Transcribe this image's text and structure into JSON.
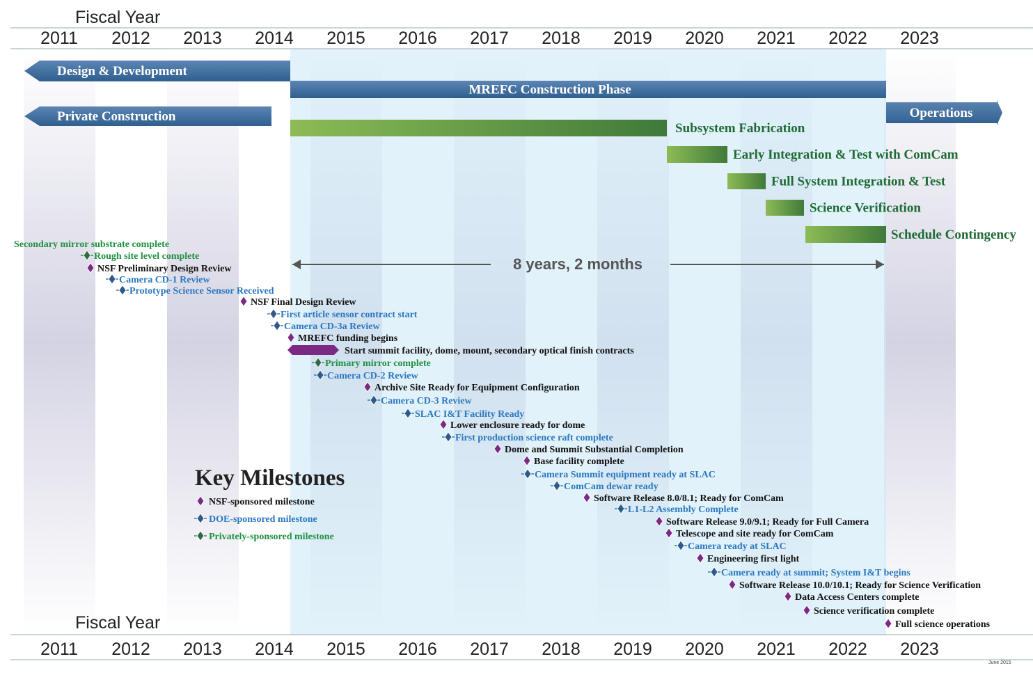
{
  "fiscal_year_label": "Fiscal Year",
  "years": [
    "2011",
    "2012",
    "2013",
    "2014",
    "2015",
    "2016",
    "2017",
    "2018",
    "2019",
    "2020",
    "2021",
    "2022",
    "2023"
  ],
  "phases": [
    {
      "label": "Design & Development"
    },
    {
      "label": "MREFC Construction Phase"
    },
    {
      "label": "Private Construction"
    },
    {
      "label": "Operations"
    },
    {
      "label": "Subsystem Fabrication"
    },
    {
      "label": "Early Integration & Test with ComCam"
    },
    {
      "label": "Full System Integration & Test"
    },
    {
      "label": "Science Verification"
    },
    {
      "label": "Schedule Contingency"
    }
  ],
  "duration_label": "8 years, 2 months",
  "milestones": [
    {
      "label": "Secondary mirror substrate complete"
    },
    {
      "label": "Rough site level complete"
    },
    {
      "label": "NSF Preliminary Design Review"
    },
    {
      "label": "Camera CD-1 Review"
    },
    {
      "label": "Prototype Science Sensor Received"
    },
    {
      "label": "NSF Final Design Review"
    },
    {
      "label": "First article sensor contract start"
    },
    {
      "label": "Camera CD-3a Review"
    },
    {
      "label": "MREFC funding begins"
    },
    {
      "label": "Start summit facility, dome, mount, secondary optical finish contracts"
    },
    {
      "label": "Primary mirror complete"
    },
    {
      "label": "Camera CD-2 Review"
    },
    {
      "label": "Archive Site Ready for Equipment Configuration"
    },
    {
      "label": "Camera CD-3 Review"
    },
    {
      "label": "SLAC I&T Facility Ready"
    },
    {
      "label": "Lower enclosure ready for dome"
    },
    {
      "label": "First production science raft complete"
    },
    {
      "label": "Dome and Summit Substantial Completion"
    },
    {
      "label": "Base facility complete"
    },
    {
      "label": "Camera Summit equipment ready at SLAC"
    },
    {
      "label": "ComCam dewar ready"
    },
    {
      "label": "Software Release 8.0/8.1; Ready for ComCam"
    },
    {
      "label": "L1-L2 Assembly Complete"
    },
    {
      "label": "Software Release 9.0/9.1; Ready for Full Camera"
    },
    {
      "label": "Telescope and site ready for ComCam"
    },
    {
      "label": "Camera ready at SLAC"
    },
    {
      "label": "Engineering first light"
    },
    {
      "label": "Camera ready at summit; System I&T begins"
    },
    {
      "label": "Software Release 10.0/10.1; Ready for Science Verification"
    },
    {
      "label": "Data Access Centers complete"
    },
    {
      "label": "Science verification complete"
    },
    {
      "label": "Full science operations"
    }
  ],
  "legend": {
    "title": "Key Milestones",
    "items": [
      "NSF-sponsored milestone",
      "DOE-sponsored milestone",
      "Privately-sponsored milestone"
    ]
  },
  "note": "June 2015"
}
